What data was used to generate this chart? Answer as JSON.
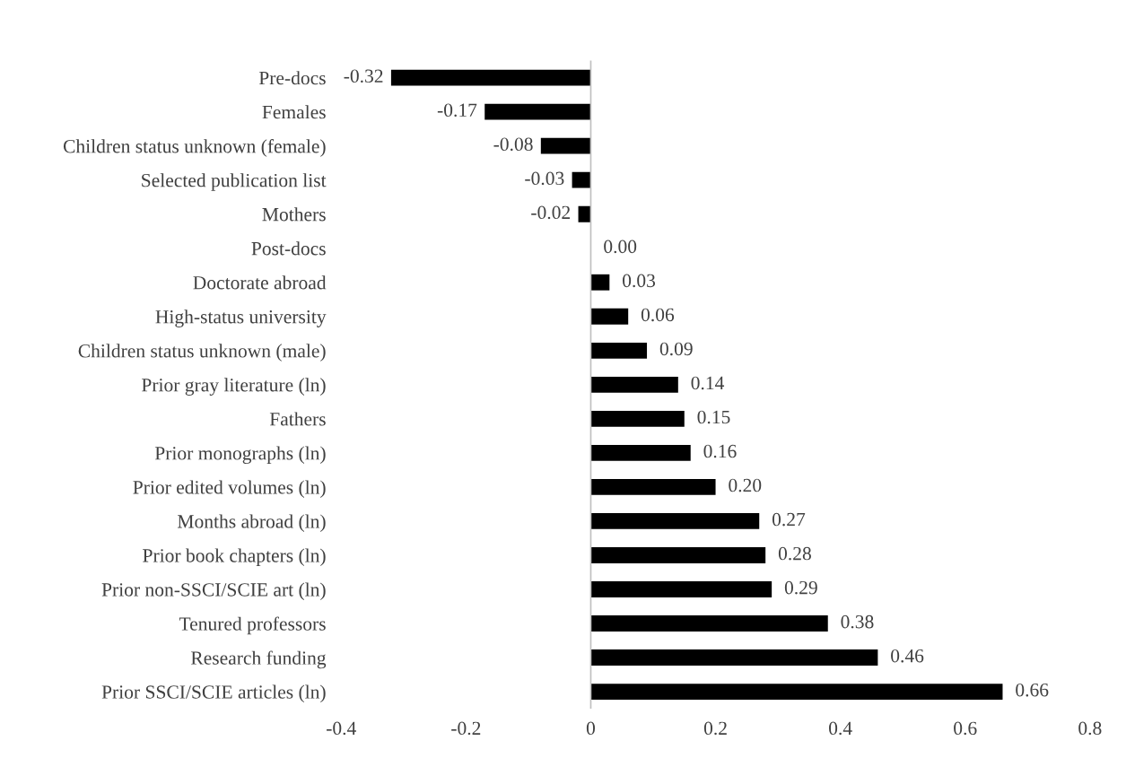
{
  "chart_data": {
    "type": "bar",
    "orientation": "horizontal",
    "categories": [
      "Pre-docs",
      "Females",
      "Children status unknown (female)",
      "Selected publication list",
      "Mothers",
      "Post-docs",
      "Doctorate abroad",
      "High-status university",
      "Children status unknown (male)",
      "Prior gray literature (ln)",
      "Fathers",
      "Prior monographs (ln)",
      "Prior edited volumes (ln)",
      "Months abroad (ln)",
      "Prior book chapters (ln)",
      "Prior non-SSCI/SCIE art (ln)",
      "Tenured professors",
      "Research funding",
      "Prior SSCI/SCIE articles (ln)"
    ],
    "values": [
      -0.32,
      -0.17,
      -0.08,
      -0.03,
      -0.02,
      0.0,
      0.03,
      0.06,
      0.09,
      0.14,
      0.15,
      0.16,
      0.2,
      0.27,
      0.28,
      0.29,
      0.38,
      0.46,
      0.66
    ],
    "value_labels": [
      "-0.32",
      "-0.17",
      "-0.08",
      "-0.03",
      "-0.02",
      "0.00",
      "0.03",
      "0.06",
      "0.09",
      "0.14",
      "0.15",
      "0.16",
      "0.20",
      "0.27",
      "0.28",
      "0.29",
      "0.38",
      "0.46",
      "0.66"
    ],
    "color": "#000000",
    "xlim": [
      -0.4,
      0.8
    ],
    "xticks": [
      -0.4,
      -0.2,
      0,
      0.2,
      0.4,
      0.6,
      0.8
    ],
    "ref_lines": [
      {
        "axis": "x",
        "value": 0,
        "color": "#bfbfbf"
      }
    ],
    "grid": false,
    "legend": false
  }
}
